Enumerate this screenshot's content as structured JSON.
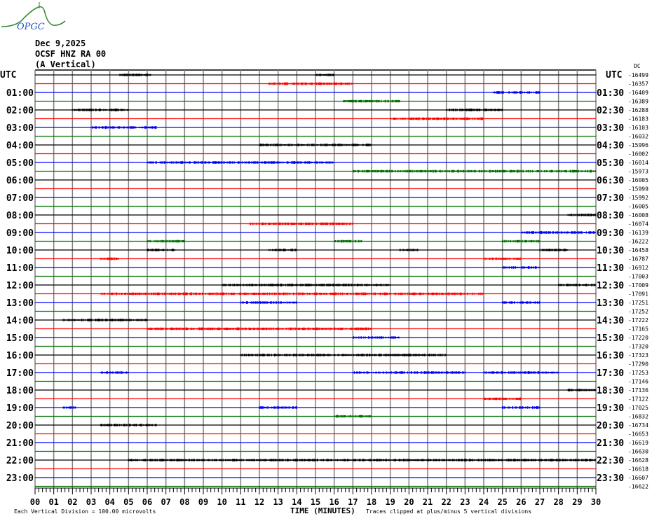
{
  "logo": {
    "text": "OPGC"
  },
  "header": {
    "date": "Dec 9,2025",
    "station": "OCSF HNZ RA 00",
    "component": "(A Vertical)"
  },
  "chart_data": {
    "type": "line",
    "subtype": "helicorder",
    "xlabel": "TIME (MINUTES)",
    "xlim": [
      0,
      30
    ],
    "x_tick_labels": [
      "00",
      "01",
      "02",
      "03",
      "04",
      "05",
      "06",
      "07",
      "08",
      "09",
      "10",
      "11",
      "12",
      "13",
      "14",
      "15",
      "16",
      "17",
      "18",
      "19",
      "20",
      "21",
      "22",
      "23",
      "24",
      "25",
      "26",
      "27",
      "28",
      "29",
      "30"
    ],
    "left_axis_title": "UTC",
    "right_axis_title": "UTC",
    "dc_label": "DC",
    "trace_colors": [
      "#000000",
      "#ff0000",
      "#0000ff",
      "#007000"
    ],
    "left_labels": [
      "",
      "01:00",
      "02:00",
      "03:00",
      "04:00",
      "05:00",
      "06:00",
      "07:00",
      "08:00",
      "09:00",
      "10:00",
      "11:00",
      "12:00",
      "13:00",
      "14:00",
      "15:00",
      "16:00",
      "17:00",
      "18:00",
      "19:00",
      "20:00",
      "21:00",
      "22:00",
      "23:00"
    ],
    "right_labels": [
      "01:30",
      "02:30",
      "03:30",
      "04:30",
      "05:30",
      "06:30",
      "07:30",
      "08:30",
      "09:30",
      "10:30",
      "11:30",
      "12:30",
      "13:30",
      "14:30",
      "15:30",
      "16:30",
      "17:30",
      "18:30",
      "19:30",
      "20:30",
      "21:30",
      "22:30",
      "23:30"
    ],
    "dc_offsets": [
      "-16499",
      "-16357",
      "-16409",
      "-16389",
      "-16288",
      "-16183",
      "-16103",
      "-16032",
      "-15996",
      "-16002",
      "-16014",
      "-15973",
      "-16005",
      "-15999",
      "-15992",
      "-16005",
      "-16008",
      "-16074",
      "-16139",
      "-16222",
      "-16458",
      "-16787",
      "-16912",
      "-17003",
      "-17009",
      "-17091",
      "-17251",
      "-17252",
      "-17222",
      "-17165",
      "-17220",
      "-17320",
      "-17323",
      "-17290",
      "-17253",
      "-17146",
      "-17136",
      "-17122",
      "-17025",
      "-16832",
      "-16734",
      "-16653",
      "-16619",
      "-16630",
      "-16628",
      "-16618",
      "-16607",
      "-16622"
    ],
    "activity_bursts_minutes": {
      "0": [
        [
          4.5,
          6.2
        ],
        [
          15,
          16
        ]
      ],
      "1": [
        [
          12.5,
          17
        ]
      ],
      "2": [
        [
          24.5,
          27
        ]
      ],
      "3": [
        [
          16.5,
          19.5
        ]
      ],
      "4": [
        [
          2,
          5
        ],
        [
          22,
          25
        ]
      ],
      "5": [
        [
          19,
          24
        ]
      ],
      "6": [
        [
          3,
          6.5
        ]
      ],
      "8": [
        [
          12,
          18
        ]
      ],
      "10": [
        [
          6,
          16
        ]
      ],
      "11": [
        [
          17,
          30
        ]
      ],
      "16": [
        [
          28.5,
          30
        ]
      ],
      "17": [
        [
          11.5,
          17
        ]
      ],
      "18": [
        [
          26,
          30
        ]
      ],
      "19": [
        [
          6,
          8
        ],
        [
          16,
          17.5
        ],
        [
          25,
          27
        ]
      ],
      "20": [
        [
          6,
          7.5
        ],
        [
          12.5,
          14
        ],
        [
          19.5,
          20.5
        ],
        [
          27,
          28.5
        ]
      ],
      "21": [
        [
          3.5,
          4.5
        ],
        [
          24,
          26
        ]
      ],
      "22": [
        [
          25,
          27
        ]
      ],
      "24": [
        [
          10,
          19
        ],
        [
          28,
          30
        ]
      ],
      "25": [
        [
          3.5,
          24
        ]
      ],
      "26": [
        [
          11,
          14
        ],
        [
          25,
          27
        ]
      ],
      "28": [
        [
          1.5,
          6
        ]
      ],
      "29": [
        [
          6,
          18
        ]
      ],
      "30": [
        [
          17,
          19.5
        ]
      ],
      "32": [
        [
          11,
          22
        ]
      ],
      "34": [
        [
          3.5,
          5
        ],
        [
          17,
          23
        ],
        [
          24,
          28
        ]
      ],
      "36": [
        [
          28.5,
          30
        ]
      ],
      "37": [
        [
          24,
          26
        ]
      ],
      "38": [
        [
          1.5,
          2.2
        ],
        [
          12,
          14
        ],
        [
          25,
          27
        ]
      ],
      "39": [
        [
          16,
          18
        ]
      ],
      "40": [
        [
          3.5,
          6.5
        ]
      ],
      "44": [
        [
          5,
          30
        ]
      ]
    },
    "grid": true
  },
  "footer": {
    "division": "Each Vertical Division =  100.00 microvolts",
    "clip": "Traces clipped at plus/minus 5 vertical divisions"
  }
}
